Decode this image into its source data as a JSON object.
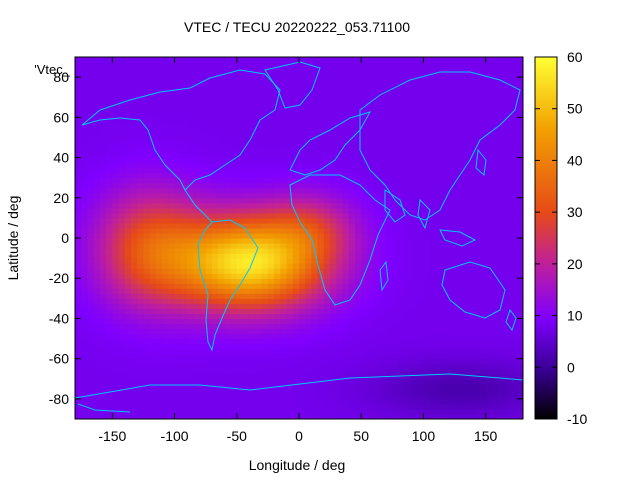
{
  "chart_data": {
    "type": "heatmap",
    "title": "VTEC / TECU 20220222_053.71100",
    "xlabel": "Longitude / deg",
    "ylabel": "Latitude / deg",
    "key_label": "'Vtec_",
    "xlim": [
      -180,
      180
    ],
    "ylim": [
      -90,
      90
    ],
    "x_ticks": [
      -150,
      -100,
      -50,
      0,
      50,
      100,
      150
    ],
    "y_ticks": [
      -80,
      -60,
      -40,
      -20,
      0,
      20,
      40,
      60,
      80
    ],
    "colorbar": {
      "range": [
        -10,
        60
      ],
      "ticks": [
        -10,
        0,
        10,
        20,
        30,
        40,
        50,
        60
      ],
      "palette": [
        "#000000",
        "#3a0096",
        "#8000ff",
        "#c0209a",
        "#e64a18",
        "#f2a000",
        "#ffff33"
      ]
    },
    "field_components": [
      {
        "description": "background",
        "value": 8
      },
      {
        "lon": -40,
        "lat": -12,
        "amplitude": 48,
        "lon_sigma": 42,
        "lat_sigma": 16
      },
      {
        "lon": -120,
        "lat": -5,
        "amplitude": 22,
        "lon_sigma": 30,
        "lat_sigma": 20
      },
      {
        "lon": 10,
        "lat": 5,
        "amplitude": 12,
        "lon_sigma": 25,
        "lat_sigma": 12
      },
      {
        "lon": 130,
        "lat": -75,
        "amplitude": -6,
        "lon_sigma": 50,
        "lat_sigma": 10
      }
    ],
    "overlay": "coastlines",
    "grid": false
  }
}
